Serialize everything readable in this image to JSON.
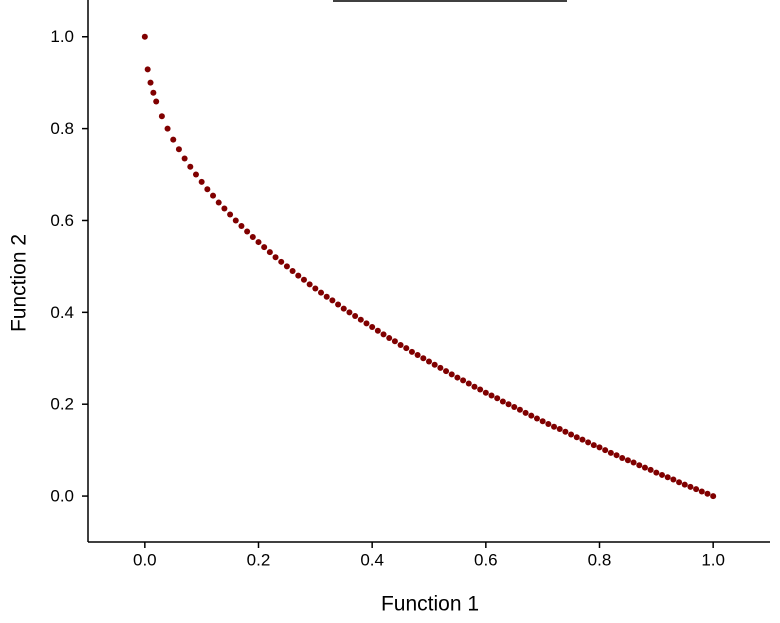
{
  "chart_data": {
    "type": "scatter",
    "x_label": "Function 1",
    "y_label": "Function 2",
    "color": "#800000",
    "xlim": [
      -0.1,
      1.1
    ],
    "ylim": [
      -0.1,
      1.08
    ],
    "xticks": [
      {
        "value": 0,
        "label": "0.0"
      },
      0.2,
      0.4,
      0.6,
      0.8,
      {
        "value": 1,
        "label": "1.0"
      }
    ],
    "yticks": [
      {
        "value": 0,
        "label": "0.0"
      },
      0.2,
      0.4,
      0.6,
      0.8,
      {
        "value": 1,
        "label": "1.0"
      }
    ],
    "x": [
      0,
      0.005,
      0.01,
      0.015,
      0.02,
      0.03,
      0.04,
      0.05,
      0.06,
      0.07,
      0.08,
      0.09,
      0.1,
      0.11,
      0.12,
      0.13,
      0.14,
      0.15,
      0.16,
      0.17,
      0.18,
      0.19,
      0.2,
      0.21,
      0.22,
      0.23,
      0.24,
      0.25,
      0.26,
      0.27,
      0.28,
      0.29,
      0.3,
      0.31,
      0.32,
      0.33,
      0.34,
      0.35,
      0.36,
      0.37,
      0.38,
      0.39,
      0.4,
      0.41,
      0.42,
      0.43,
      0.44,
      0.45,
      0.46,
      0.47,
      0.48,
      0.49,
      0.5,
      0.51,
      0.52,
      0.53,
      0.54,
      0.55,
      0.56,
      0.57,
      0.58,
      0.59,
      0.6,
      0.61,
      0.62,
      0.63,
      0.64,
      0.65,
      0.66,
      0.67,
      0.68,
      0.69,
      0.7,
      0.71,
      0.72,
      0.73,
      0.74,
      0.75,
      0.76,
      0.77,
      0.78,
      0.79,
      0.8,
      0.81,
      0.82,
      0.83,
      0.84,
      0.85,
      0.86,
      0.87,
      0.88,
      0.89,
      0.9,
      0.91,
      0.92,
      0.93,
      0.94,
      0.95,
      0.96,
      0.97,
      0.98,
      0.99,
      1
    ],
    "values": [
      1,
      0.929,
      0.9,
      0.878,
      0.859,
      0.827,
      0.8,
      0.776,
      0.755,
      0.735,
      0.717,
      0.7,
      0.684,
      0.668,
      0.654,
      0.639,
      0.626,
      0.613,
      0.6,
      0.588,
      0.576,
      0.564,
      0.553,
      0.542,
      0.531,
      0.52,
      0.51,
      0.5,
      0.49,
      0.48,
      0.471,
      0.461,
      0.452,
      0.443,
      0.434,
      0.426,
      0.417,
      0.408,
      0.4,
      0.392,
      0.384,
      0.376,
      0.368,
      0.36,
      0.352,
      0.344,
      0.337,
      0.329,
      0.322,
      0.314,
      0.307,
      0.3,
      0.293,
      0.286,
      0.279,
      0.272,
      0.265,
      0.258,
      0.252,
      0.245,
      0.238,
      0.232,
      0.225,
      0.219,
      0.213,
      0.206,
      0.2,
      0.194,
      0.188,
      0.181,
      0.175,
      0.169,
      0.163,
      0.157,
      0.151,
      0.146,
      0.14,
      0.134,
      0.128,
      0.123,
      0.117,
      0.111,
      0.106,
      0.1,
      0.094,
      0.089,
      0.083,
      0.078,
      0.073,
      0.067,
      0.062,
      0.057,
      0.051,
      0.046,
      0.041,
      0.036,
      0.03,
      0.025,
      0.02,
      0.015,
      0.01,
      0.005,
      0
    ]
  }
}
